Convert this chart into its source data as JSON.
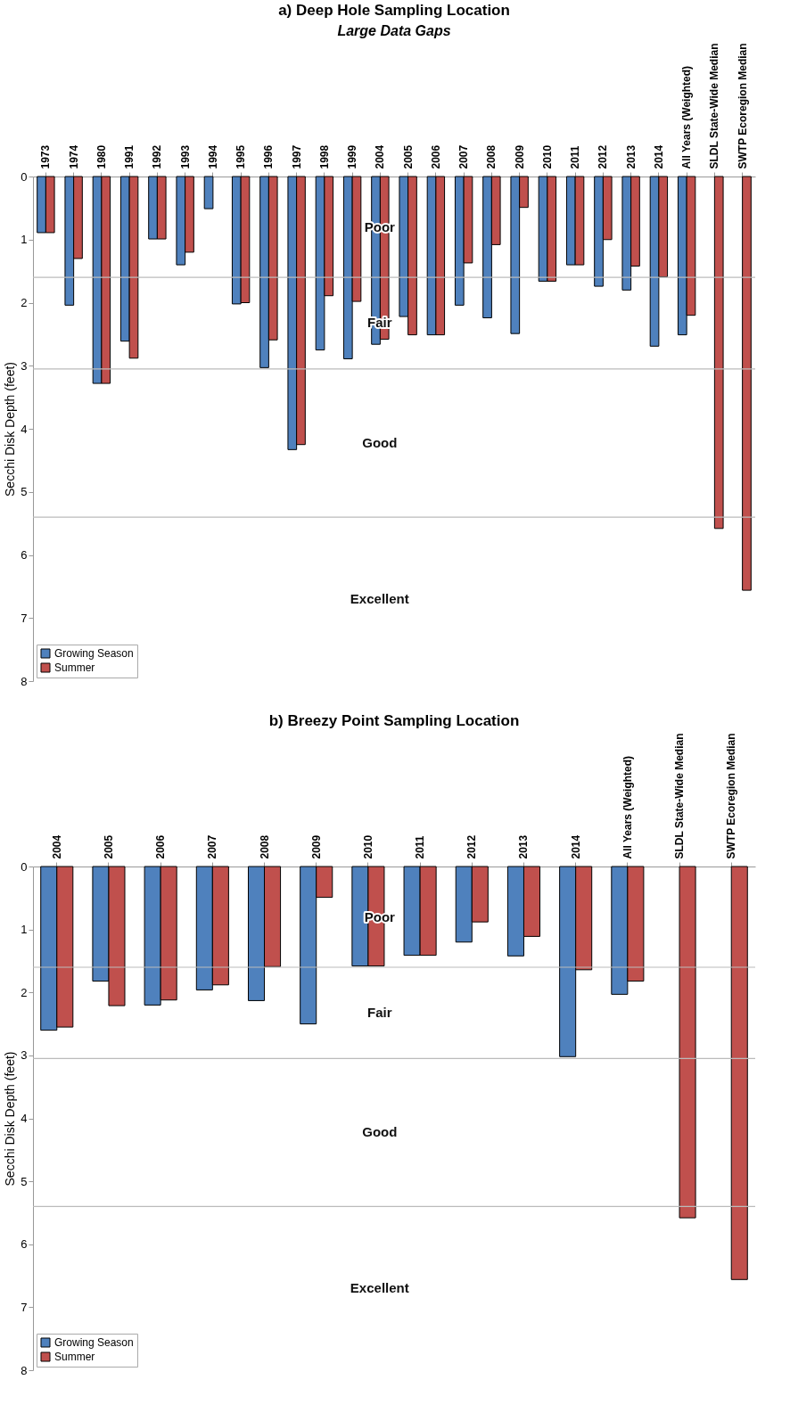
{
  "chart_data": [
    {
      "type": "bar",
      "title": "a) Deep Hole Sampling Location",
      "ylabel": "Secchi Disk Depth (feet)",
      "categories": [
        "1973",
        "1974",
        "1980",
        "1991",
        "1992",
        "1993",
        "1994",
        "1995",
        "1996",
        "1997",
        "1998",
        "1999",
        "2004",
        "2005",
        "2006",
        "2007",
        "2008",
        "2009",
        "2010",
        "2011",
        "2012",
        "2013",
        "2014",
        "All Years (Weighted)",
        "SLDL State-Wide Median",
        "SWTP Ecoregion Median"
      ],
      "series": [
        {
          "name": "Growing Season",
          "color": "#4f81bd",
          "values": [
            0.89,
            2.04,
            3.28,
            2.61,
            0.99,
            1.4,
            0.51,
            2.02,
            3.03,
            4.33,
            2.75,
            2.89,
            2.66,
            2.22,
            2.51,
            2.04,
            2.24,
            2.49,
            1.66,
            1.4,
            1.74,
            1.8,
            2.69,
            2.51,
            null,
            null
          ]
        },
        {
          "name": "Summer",
          "color": "#c0504d",
          "values": [
            0.89,
            1.3,
            3.28,
            2.88,
            0.99,
            1.2,
            null,
            2.0,
            2.59,
            4.25,
            1.89,
            1.98,
            2.58,
            2.51,
            2.51,
            1.37,
            1.08,
            0.49,
            1.66,
            1.4,
            1.0,
            1.42,
            1.59,
            2.2,
            5.58,
            6.56
          ]
        }
      ],
      "ylim": [
        8,
        0
      ],
      "yticks": [
        0,
        1,
        2,
        3,
        4,
        5,
        6,
        7,
        8
      ],
      "legend": "bottom left",
      "ref_lines": [
        {
          "axis": "y",
          "value": 1.6
        },
        {
          "axis": "y",
          "value": 3.05
        },
        {
          "axis": "y",
          "value": 5.4
        }
      ],
      "annotations": [
        "Large Data Gaps",
        "Poor",
        "Fair",
        "Good",
        "Excellent"
      ]
    },
    {
      "type": "bar",
      "title": "b) Breezy Point Sampling Location",
      "ylabel": "Secchi Disk Depth (feet)",
      "categories": [
        "2004",
        "2005",
        "2006",
        "2007",
        "2008",
        "2009",
        "2010",
        "2011",
        "2012",
        "2013",
        "2014",
        "All Years (Weighted)",
        "SLDL State-Wide Median",
        "SWTP Ecoregion Median"
      ],
      "series": [
        {
          "name": "Growing Season",
          "color": "#4f81bd",
          "values": [
            2.6,
            1.82,
            2.2,
            1.96,
            2.13,
            2.5,
            1.58,
            1.41,
            1.2,
            1.42,
            3.02,
            2.03,
            null,
            null
          ]
        },
        {
          "name": "Summer",
          "color": "#c0504d",
          "values": [
            2.55,
            2.21,
            2.12,
            1.88,
            1.59,
            0.49,
            1.58,
            1.41,
            0.88,
            1.11,
            1.64,
            1.82,
            5.58,
            6.56
          ]
        }
      ],
      "ylim": [
        8,
        0
      ],
      "yticks": [
        0,
        1,
        2,
        3,
        4,
        5,
        6,
        7,
        8
      ],
      "legend": "bottom left",
      "ref_lines": [
        {
          "axis": "y",
          "value": 1.6
        },
        {
          "axis": "y",
          "value": 3.05
        },
        {
          "axis": "y",
          "value": 5.4
        }
      ],
      "annotations": [
        "Poor",
        "Fair",
        "Good",
        "Excellent"
      ]
    }
  ]
}
